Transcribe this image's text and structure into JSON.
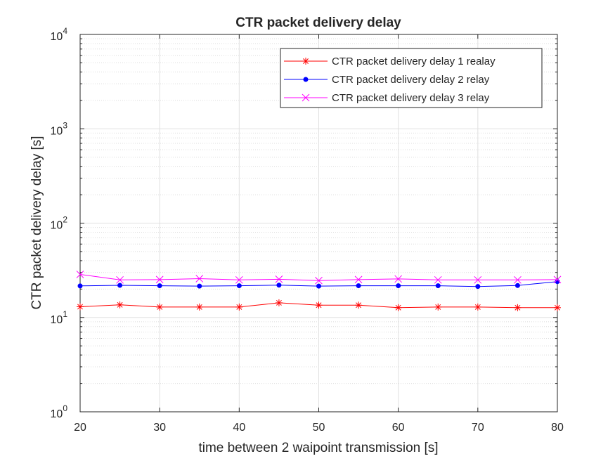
{
  "chart_data": {
    "type": "line",
    "title": "CTR packet delivery delay",
    "xlabel": "time between 2 waipoint transmission [s]",
    "ylabel": "CTR packet delivery delay [s]",
    "xlim": [
      20,
      80
    ],
    "ylim": [
      1,
      10000
    ],
    "yscale": "log",
    "grid": true,
    "minor_grid": true,
    "legend_position": "top-right",
    "x": [
      20,
      25,
      30,
      35,
      40,
      45,
      50,
      55,
      60,
      65,
      70,
      75,
      80
    ],
    "xticks": [
      "20",
      "30",
      "40",
      "50",
      "60",
      "70",
      "80"
    ],
    "xtick_values": [
      20,
      30,
      40,
      50,
      60,
      70,
      80
    ],
    "yticks": [
      {
        "value": 1,
        "base": "10",
        "exp": "0"
      },
      {
        "value": 10,
        "base": "10",
        "exp": "1"
      },
      {
        "value": 100,
        "base": "10",
        "exp": "2"
      },
      {
        "value": 1000,
        "base": "10",
        "exp": "3"
      },
      {
        "value": 10000,
        "base": "10",
        "exp": "4"
      }
    ],
    "series": [
      {
        "name": "CTR packet delivery delay 1 realay",
        "color": "#ff0000",
        "marker": "asterisk",
        "values": [
          13.0,
          13.6,
          12.9,
          12.9,
          12.9,
          14.3,
          13.5,
          13.5,
          12.7,
          12.9,
          12.9,
          12.7,
          12.7
        ]
      },
      {
        "name": "CTR packet delivery delay 2 relay",
        "color": "#0000ff",
        "marker": "dot",
        "values": [
          21.6,
          21.9,
          21.7,
          21.5,
          21.7,
          22.0,
          21.5,
          21.7,
          21.7,
          21.7,
          21.3,
          21.8,
          24.0
        ]
      },
      {
        "name": "CTR packet delivery delay 3 relay",
        "color": "#ff00ff",
        "marker": "x",
        "values": [
          28.6,
          25.0,
          25.2,
          25.8,
          25.0,
          25.4,
          24.6,
          25.2,
          25.6,
          25.0,
          25.0,
          25.0,
          25.2
        ]
      }
    ]
  }
}
